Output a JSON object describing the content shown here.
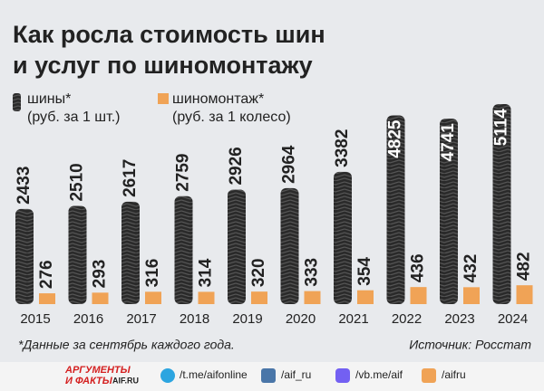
{
  "chart_data": {
    "type": "bar",
    "title": [
      "Как росла стоимость шин",
      "и услуг по шиномонтажу"
    ],
    "categories": [
      "2015",
      "2016",
      "2017",
      "2018",
      "2019",
      "2020",
      "2021",
      "2022",
      "2023",
      "2024"
    ],
    "series": [
      {
        "name": "шины*",
        "unit": "(руб. за 1 шт.)",
        "color": "#2a2a2a",
        "values": [
          2433,
          2510,
          2617,
          2759,
          2926,
          2964,
          3382,
          4825,
          4741,
          5114
        ]
      },
      {
        "name": "шиномонтаж*",
        "unit": "(руб. за 1 колесо)",
        "color": "#f0a356",
        "values": [
          276,
          293,
          316,
          314,
          320,
          333,
          354,
          436,
          432,
          482
        ]
      }
    ],
    "footnote": "*Данные за сентябрь каждого года.",
    "source": "Источник: Росстат"
  },
  "footer": {
    "logo": [
      "АРГУМЕНТЫ",
      "И ФАКТЫ",
      "AIF.RU"
    ],
    "links": [
      "/t.me/aifonline",
      "/aif_ru",
      "/vb.me/aif",
      "/aifru"
    ]
  }
}
